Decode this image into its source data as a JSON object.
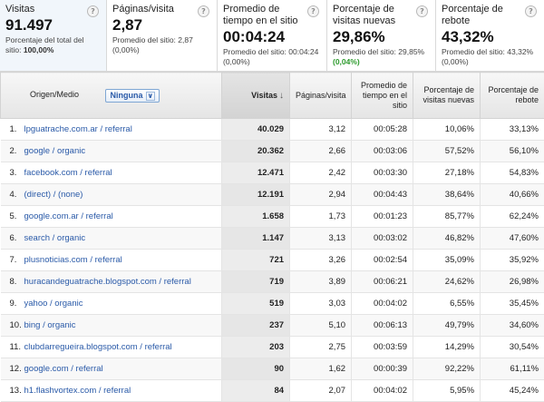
{
  "summary": [
    {
      "label": "Visitas",
      "value": "91.497",
      "note_prefix": "Porcentaje del total del sitio: ",
      "note_strong": "100,00%",
      "note_delta": ""
    },
    {
      "label": "Páginas/visita",
      "value": "2,87",
      "note_prefix": "Promedio del sitio: 2,87 (0,00%)",
      "note_strong": "",
      "note_delta": ""
    },
    {
      "label": "Promedio de tiempo en el sitio",
      "value": "00:04:24",
      "note_prefix": "Promedio del sitio: 00:04:24 (0,00%)",
      "note_strong": "",
      "note_delta": ""
    },
    {
      "label": "Porcentaje de visitas nuevas",
      "value": "29,86%",
      "note_prefix": "Promedio del sitio: 29,85% ",
      "note_strong": "",
      "note_delta": "(0,04%)"
    },
    {
      "label": "Porcentaje de rebote",
      "value": "43,32%",
      "note_prefix": "Promedio del sitio: 43,32% (0,00%)",
      "note_strong": "",
      "note_delta": ""
    }
  ],
  "help_glyph": "?",
  "table": {
    "headers": {
      "source": "Origen/Medio",
      "filter": "Ninguna",
      "visits": "Visitas",
      "pages": "Páginas/visita",
      "time": "Promedio de tiempo en el sitio",
      "new_visits": "Porcentaje de visitas nuevas",
      "bounce": "Porcentaje de rebote"
    },
    "rows": [
      {
        "idx": "1.",
        "source": "lpguatrache.com.ar / referral",
        "visits": "40.029",
        "pages": "3,12",
        "time": "00:05:28",
        "new": "10,06%",
        "bounce": "33,13%"
      },
      {
        "idx": "2.",
        "source": "google / organic",
        "visits": "20.362",
        "pages": "2,66",
        "time": "00:03:06",
        "new": "57,52%",
        "bounce": "56,10%"
      },
      {
        "idx": "3.",
        "source": "facebook.com / referral",
        "visits": "12.471",
        "pages": "2,42",
        "time": "00:03:30",
        "new": "27,18%",
        "bounce": "54,83%"
      },
      {
        "idx": "4.",
        "source": "(direct) / (none)",
        "visits": "12.191",
        "pages": "2,94",
        "time": "00:04:43",
        "new": "38,64%",
        "bounce": "40,66%"
      },
      {
        "idx": "5.",
        "source": "google.com.ar / referral",
        "visits": "1.658",
        "pages": "1,73",
        "time": "00:01:23",
        "new": "85,77%",
        "bounce": "62,24%"
      },
      {
        "idx": "6.",
        "source": "search / organic",
        "visits": "1.147",
        "pages": "3,13",
        "time": "00:03:02",
        "new": "46,82%",
        "bounce": "47,60%"
      },
      {
        "idx": "7.",
        "source": "plusnoticias.com / referral",
        "visits": "721",
        "pages": "3,26",
        "time": "00:02:54",
        "new": "35,09%",
        "bounce": "35,92%"
      },
      {
        "idx": "8.",
        "source": "huracandeguatrache.blogspot.com / referral",
        "visits": "719",
        "pages": "3,89",
        "time": "00:06:21",
        "new": "24,62%",
        "bounce": "26,98%"
      },
      {
        "idx": "9.",
        "source": "yahoo / organic",
        "visits": "519",
        "pages": "3,03",
        "time": "00:04:02",
        "new": "6,55%",
        "bounce": "35,45%"
      },
      {
        "idx": "10.",
        "source": "bing / organic",
        "visits": "237",
        "pages": "5,10",
        "time": "00:06:13",
        "new": "49,79%",
        "bounce": "34,60%"
      },
      {
        "idx": "11.",
        "source": "clubdarregueira.blogspot.com / referral",
        "visits": "203",
        "pages": "2,75",
        "time": "00:03:59",
        "new": "14,29%",
        "bounce": "30,54%"
      },
      {
        "idx": "12.",
        "source": "google.com / referral",
        "visits": "90",
        "pages": "1,62",
        "time": "00:00:39",
        "new": "92,22%",
        "bounce": "61,11%"
      },
      {
        "idx": "13.",
        "source": "h1.flashvortex.com / referral",
        "visits": "84",
        "pages": "2,07",
        "time": "00:04:02",
        "new": "5,95%",
        "bounce": "45,24%"
      }
    ]
  }
}
